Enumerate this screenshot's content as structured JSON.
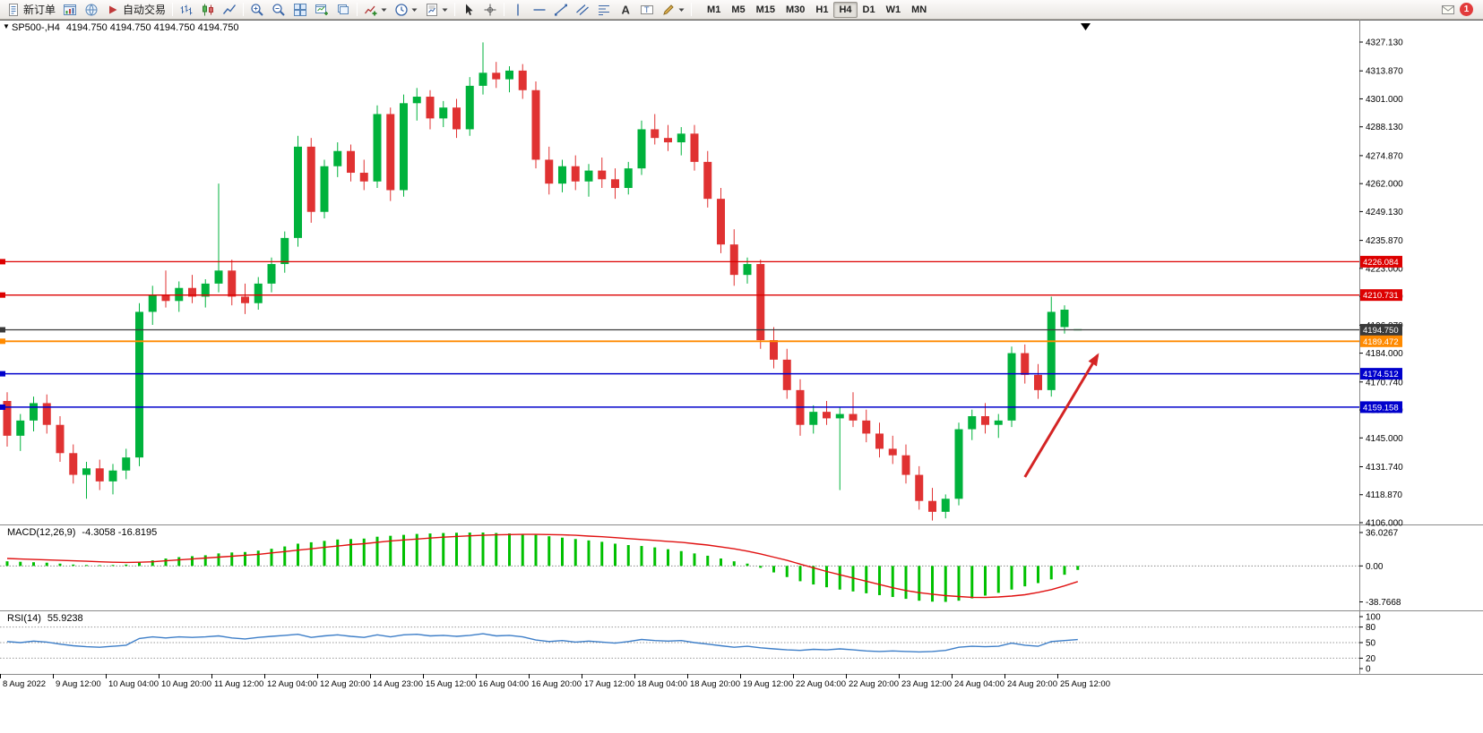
{
  "toolbar": {
    "new_order": "新订单",
    "auto_trading": "自动交易",
    "timeframes": [
      {
        "label": "M1",
        "active": false
      },
      {
        "label": "M5",
        "active": false
      },
      {
        "label": "M15",
        "active": false
      },
      {
        "label": "M30",
        "active": false
      },
      {
        "label": "H1",
        "active": false
      },
      {
        "label": "H4",
        "active": true
      },
      {
        "label": "D1",
        "active": false
      },
      {
        "label": "W1",
        "active": false
      },
      {
        "label": "MN",
        "active": false
      }
    ],
    "notification_count": "1"
  },
  "chart": {
    "title_symbol": "SP500-,H4",
    "title_ohlc": "4194.750 4194.750 4194.750 4194.750",
    "current_price": "4194.750"
  },
  "indicators": {
    "macd": {
      "label": "MACD(12,26,9)",
      "values": "-4.3058 -16.8195"
    },
    "rsi": {
      "label": "RSI(14)",
      "value": "55.9238"
    }
  },
  "chart_data": [
    {
      "type": "candlestick",
      "symbol": "SP500-",
      "period": "H4",
      "ylim": [
        4106.0,
        4327.13
      ],
      "y_ticks": [
        "4327.130",
        "4313.870",
        "4301.000",
        "4288.130",
        "4274.870",
        "4262.000",
        "4249.130",
        "4235.870",
        "4223.000",
        "4210.130",
        "4196.870",
        "4184.000",
        "4170.740",
        "4157.870",
        "4145.000",
        "4131.740",
        "4118.870",
        "4106.000"
      ],
      "x_labels": [
        "8 Aug 2022",
        "9 Aug 12:00",
        "10 Aug 04:00",
        "10 Aug 20:00",
        "11 Aug 12:00",
        "12 Aug 04:00",
        "12 Aug 20:00",
        "14 Aug 23:00",
        "15 Aug 12:00",
        "16 Aug 04:00",
        "16 Aug 20:00",
        "17 Aug 12:00",
        "18 Aug 04:00",
        "18 Aug 20:00",
        "19 Aug 12:00",
        "22 Aug 04:00",
        "22 Aug 20:00",
        "23 Aug 12:00",
        "24 Aug 04:00",
        "24 Aug 20:00",
        "25 Aug 12:00"
      ],
      "colors": {
        "bull": "#00b23c",
        "bear": "#e03232"
      },
      "candles": [
        [
          4162,
          4166,
          4141,
          4146
        ],
        [
          4146,
          4156,
          4139,
          4153
        ],
        [
          4153,
          4164,
          4148,
          4161
        ],
        [
          4161,
          4165,
          4147,
          4151
        ],
        [
          4151,
          4155,
          4134,
          4138
        ],
        [
          4138,
          4142,
          4124,
          4128
        ],
        [
          4128,
          4134,
          4117,
          4131
        ],
        [
          4131,
          4135,
          4121,
          4125
        ],
        [
          4125,
          4133,
          4119,
          4130
        ],
        [
          4130,
          4140,
          4126,
          4136
        ],
        [
          4136,
          4207,
          4132,
          4203
        ],
        [
          4203,
          4215,
          4197,
          4211
        ],
        [
          4211,
          4222,
          4205,
          4208
        ],
        [
          4208,
          4217,
          4203,
          4214
        ],
        [
          4214,
          4220,
          4207,
          4210
        ],
        [
          4210,
          4218,
          4205,
          4216
        ],
        [
          4216,
          4262,
          4212,
          4222
        ],
        [
          4222,
          4227,
          4206,
          4210
        ],
        [
          4210,
          4216,
          4202,
          4207
        ],
        [
          4207,
          4219,
          4204,
          4216
        ],
        [
          4216,
          4228,
          4212,
          4225
        ],
        [
          4225,
          4240,
          4221,
          4237
        ],
        [
          4237,
          4284,
          4233,
          4279
        ],
        [
          4279,
          4283,
          4244,
          4249
        ],
        [
          4249,
          4273,
          4246,
          4270
        ],
        [
          4270,
          4281,
          4265,
          4277
        ],
        [
          4277,
          4280,
          4263,
          4267
        ],
        [
          4267,
          4273,
          4259,
          4263
        ],
        [
          4263,
          4298,
          4260,
          4294
        ],
        [
          4294,
          4297,
          4254,
          4259
        ],
        [
          4259,
          4303,
          4256,
          4299
        ],
        [
          4299,
          4306,
          4291,
          4302
        ],
        [
          4302,
          4305,
          4287,
          4292
        ],
        [
          4292,
          4300,
          4288,
          4297
        ],
        [
          4297,
          4301,
          4283,
          4287
        ],
        [
          4287,
          4311,
          4284,
          4307
        ],
        [
          4307,
          4327,
          4303,
          4313
        ],
        [
          4313,
          4318,
          4306,
          4310
        ],
        [
          4310,
          4316,
          4304,
          4314
        ],
        [
          4314,
          4317,
          4301,
          4305
        ],
        [
          4305,
          4309,
          4269,
          4273
        ],
        [
          4273,
          4279,
          4257,
          4262
        ],
        [
          4262,
          4273,
          4258,
          4270
        ],
        [
          4270,
          4275,
          4259,
          4263
        ],
        [
          4263,
          4271,
          4256,
          4268
        ],
        [
          4268,
          4274,
          4260,
          4264
        ],
        [
          4264,
          4269,
          4255,
          4260
        ],
        [
          4260,
          4272,
          4257,
          4269
        ],
        [
          4269,
          4291,
          4266,
          4287
        ],
        [
          4287,
          4294,
          4280,
          4283
        ],
        [
          4283,
          4289,
          4277,
          4281
        ],
        [
          4281,
          4288,
          4275,
          4285
        ],
        [
          4285,
          4289,
          4268,
          4272
        ],
        [
          4272,
          4277,
          4251,
          4255
        ],
        [
          4255,
          4260,
          4230,
          4234
        ],
        [
          4234,
          4241,
          4215,
          4220
        ],
        [
          4220,
          4228,
          4216,
          4225
        ],
        [
          4225,
          4227,
          4186,
          4190
        ],
        [
          4190,
          4196,
          4177,
          4181
        ],
        [
          4181,
          4186,
          4163,
          4167
        ],
        [
          4167,
          4172,
          4146,
          4151
        ],
        [
          4151,
          4160,
          4147,
          4157
        ],
        [
          4157,
          4162,
          4151,
          4154
        ],
        [
          4154,
          4159,
          4121,
          4156
        ],
        [
          4156,
          4166,
          4150,
          4153
        ],
        [
          4153,
          4158,
          4143,
          4147
        ],
        [
          4147,
          4152,
          4136,
          4140
        ],
        [
          4140,
          4146,
          4133,
          4137
        ],
        [
          4137,
          4142,
          4124,
          4128
        ],
        [
          4128,
          4132,
          4112,
          4116
        ],
        [
          4116,
          4122,
          4107,
          4111
        ],
        [
          4111,
          4119,
          4108,
          4117
        ],
        [
          4117,
          4152,
          4114,
          4149
        ],
        [
          4149,
          4158,
          4144,
          4155
        ],
        [
          4155,
          4161,
          4147,
          4151
        ],
        [
          4151,
          4156,
          4145,
          4153
        ],
        [
          4153,
          4187,
          4150,
          4184
        ],
        [
          4184,
          4188,
          4170,
          4174
        ],
        [
          4174,
          4179,
          4163,
          4167
        ],
        [
          4167,
          4210,
          4164,
          4203
        ],
        [
          4196,
          4206,
          4193,
          4204
        ],
        [
          4194.75,
          4194.75,
          4194.75,
          4194.75
        ]
      ],
      "hlines": [
        {
          "value": 4226.084,
          "label": "4226.084",
          "color": "#dd0000",
          "width": 1.3
        },
        {
          "value": 4210.731,
          "label": "4210.731",
          "color": "#dd0000",
          "width": 1.3
        },
        {
          "value": 4194.75,
          "label": "4194.750",
          "color": "#3a3a3a",
          "width": 1.2
        },
        {
          "value": 4189.472,
          "label": "4189.472",
          "color": "#ff8a00",
          "width": 1.8
        },
        {
          "value": 4174.512,
          "label": "4174.512",
          "color": "#0000cc",
          "width": 1.5
        },
        {
          "value": 4159.158,
          "label": "4159.158",
          "color": "#0000cc",
          "width": 1.5
        }
      ],
      "annotations": [
        {
          "type": "arrow",
          "color": "#d42424",
          "from_idx": 77,
          "from_price": 4127,
          "to_idx": 82.5,
          "to_price": 4183
        }
      ]
    },
    {
      "type": "bar",
      "name": "MACD(12,26,9)",
      "ylim": [
        -38.7668,
        36.0267
      ],
      "y_ticks": [
        "36.0267",
        "0.00",
        "-38.7668"
      ],
      "colors": {
        "histogram": "#00c000",
        "signal": "#e01010"
      },
      "histogram": [
        5,
        4.5,
        4,
        3.5,
        2.5,
        1.5,
        1,
        0.8,
        1,
        1.5,
        4,
        6,
        8,
        9.5,
        10.5,
        11.5,
        13.5,
        14.5,
        15,
        16.5,
        18.5,
        21,
        24,
        25.5,
        27,
        28.5,
        29,
        29.5,
        31.5,
        32.5,
        33.5,
        34.5,
        35,
        35.5,
        35.8,
        36,
        36.0267,
        35.5,
        35,
        34.5,
        33.5,
        32,
        30.5,
        29,
        27.5,
        26,
        24,
        22.5,
        21.5,
        20,
        18,
        16,
        13.5,
        11,
        8,
        5,
        2.5,
        -2,
        -7,
        -12,
        -16.5,
        -20,
        -23,
        -25.5,
        -27.5,
        -29.5,
        -31.5,
        -33.5,
        -35.5,
        -37.5,
        -38.5,
        -38.7668,
        -37.5,
        -35,
        -32,
        -29,
        -25.5,
        -22,
        -18.5,
        -14.5,
        -9.5,
        -4.3058
      ],
      "signal": [
        8,
        7.5,
        7,
        6.5,
        6,
        5.5,
        5,
        4.5,
        4,
        3.8,
        4,
        4.5,
        5.5,
        6.5,
        7.5,
        8.5,
        9.5,
        10.5,
        11.5,
        12.5,
        14,
        15.5,
        17,
        18.5,
        20,
        21.5,
        23,
        24,
        25.5,
        27,
        28,
        29,
        30,
        31,
        31.8,
        32.5,
        33,
        33.5,
        33.8,
        34,
        34,
        33.8,
        33.5,
        33,
        32.2,
        31.5,
        30.5,
        29.5,
        28.5,
        27.5,
        26.5,
        25.5,
        24,
        22.5,
        20.5,
        18.5,
        16,
        13,
        9.5,
        6,
        2,
        -2,
        -6,
        -9.5,
        -13,
        -16.5,
        -20,
        -23.5,
        -26.5,
        -28.8,
        -30.5,
        -32,
        -33,
        -33.8,
        -34,
        -33.5,
        -32.5,
        -31,
        -28.5,
        -25.5,
        -21.5,
        -16.8195
      ]
    },
    {
      "type": "line",
      "name": "RSI(14)",
      "ylim": [
        0,
        100
      ],
      "levels": [
        80,
        50,
        20
      ],
      "y_ticks": [
        "100",
        "80",
        "50",
        "20",
        "0"
      ],
      "color": "#3d7ec8",
      "values": [
        52,
        50,
        53,
        51,
        47,
        44,
        42,
        41,
        43,
        45,
        58,
        61,
        59,
        61,
        60,
        61,
        63,
        59,
        57,
        60,
        62,
        64,
        66,
        60,
        63,
        65,
        62,
        60,
        65,
        61,
        65,
        66,
        63,
        64,
        62,
        64,
        67,
        63,
        64,
        61,
        55,
        52,
        54,
        51,
        53,
        51,
        49,
        52,
        56,
        54,
        53,
        54,
        50,
        47,
        44,
        41,
        43,
        40,
        38,
        36,
        35,
        37,
        36,
        38,
        36,
        34,
        33,
        34,
        33,
        32,
        33,
        35,
        41,
        43,
        42,
        43,
        49,
        45,
        43,
        52,
        54,
        55.9238
      ]
    }
  ]
}
